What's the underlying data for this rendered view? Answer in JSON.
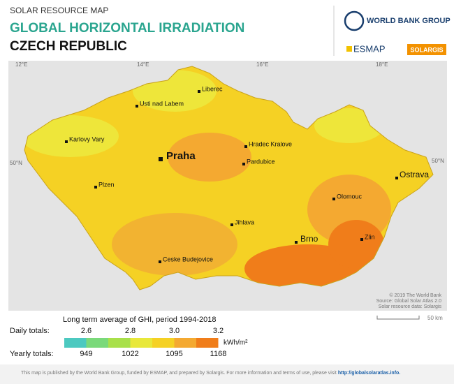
{
  "header": {
    "subtitle": "SOLAR RESOURCE MAP",
    "title": "GLOBAL HORIZONTAL IRRADIATION",
    "country": "CZECH REPUBLIC"
  },
  "logos": {
    "wbg": "WORLD BANK GROUP",
    "esmap": "ESMAP",
    "solargis": "SOLARGIS"
  },
  "map": {
    "graticule": {
      "lon": [
        "12°E",
        "14°E",
        "16°E",
        "18°E"
      ],
      "lat": "50°N"
    },
    "cities": [
      "Liberec",
      "Usti nad Labem",
      "Karlovy Vary",
      "Hradec Kralove",
      "Praha",
      "Pardubice",
      "Ostrava",
      "Plzen",
      "Olomouc",
      "Jihlava",
      "Brno",
      "Zlin",
      "Ceske Budejovice"
    ],
    "credits": [
      "© 2019 The World Bank",
      "Source: Global Solar Atlas 2.0",
      "Solar resource data: Solargis"
    ],
    "scale": "50 km"
  },
  "legend": {
    "title": "Long term average of GHI, period 1994-2018",
    "daily_label": "Daily totals:",
    "daily": [
      "2.6",
      "2.8",
      "3.0",
      "3.2"
    ],
    "yearly_label": "Yearly totals:",
    "yearly": [
      "949",
      "1022",
      "1095",
      "1168"
    ],
    "unit": "kWh/m²"
  },
  "footer": {
    "text": "This map is published by the World Bank Group, funded by ESMAP, and prepared by Solargis. For more information and terms of use, please visit",
    "link": "http://globalsolaratlas.info."
  }
}
